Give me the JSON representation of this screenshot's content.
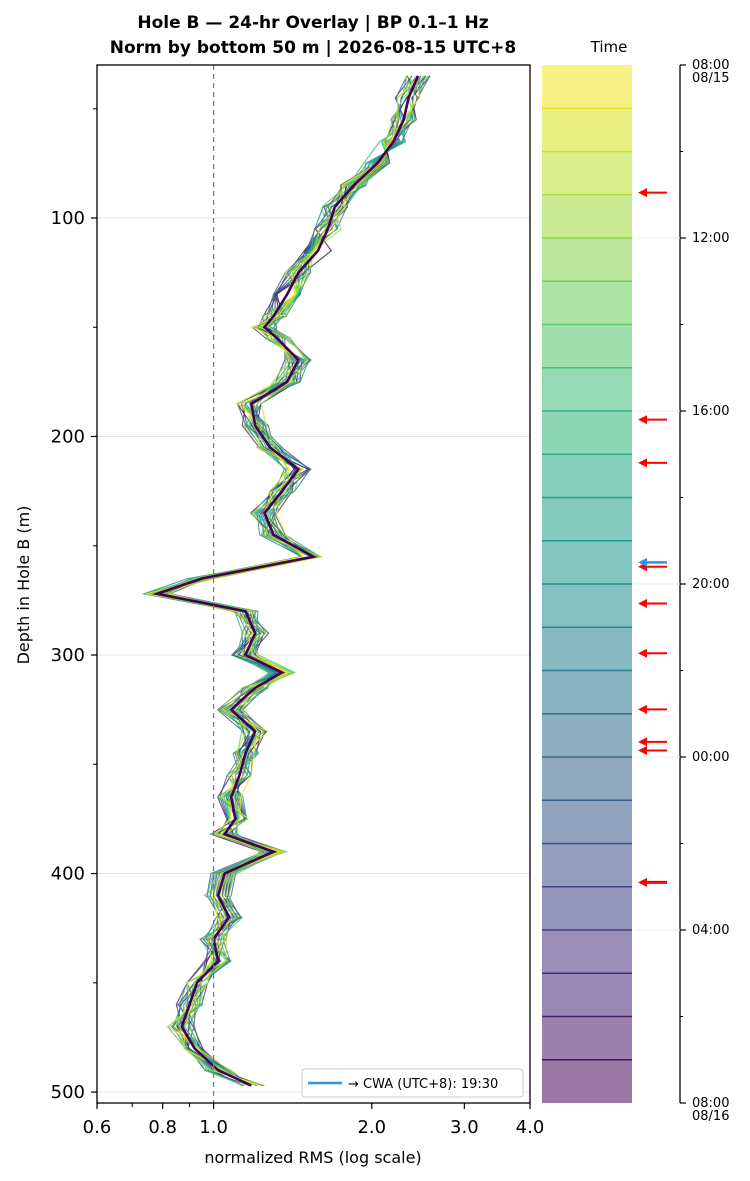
{
  "chart_data": {
    "type": "line",
    "title_line1": "Hole B — 24-hr Overlay  |  BP 0.1–1 Hz",
    "title_line2": "Norm by bottom 50 m  |  2026-08-15 UTC+8",
    "xlabel": "normalized RMS  (log scale)",
    "ylabel": "Depth in Hole B (m)",
    "x_scale": "log",
    "xlim": [
      0.6,
      4.0
    ],
    "ylim": [
      505,
      30
    ],
    "x_ticks": [
      {
        "value": 0.6,
        "label": "0.6"
      },
      {
        "value": 0.8,
        "label": "0.8"
      },
      {
        "value": 1.0,
        "label": "1.0"
      },
      {
        "value": 2.0,
        "label": "2.0"
      },
      {
        "value": 3.0,
        "label": "3.0"
      },
      {
        "value": 4.0,
        "label": "4.0"
      }
    ],
    "y_ticks": [
      {
        "value": 100,
        "label": "100"
      },
      {
        "value": 200,
        "label": "200"
      },
      {
        "value": 300,
        "label": "300"
      },
      {
        "value": 400,
        "label": "400"
      },
      {
        "value": 500,
        "label": "500"
      }
    ],
    "reference_line_x": 1.0,
    "grid": "horizontal",
    "legend": {
      "label": "→ CWA (UTC+8): 19:30",
      "color": "#3390e8",
      "position": "lower right"
    },
    "depths": [
      35,
      45,
      55,
      65,
      75,
      85,
      95,
      105,
      115,
      125,
      135,
      145,
      150,
      155,
      165,
      175,
      185,
      195,
      205,
      215,
      225,
      235,
      245,
      255,
      265,
      272,
      280,
      290,
      300,
      308,
      315,
      325,
      335,
      345,
      355,
      365,
      375,
      382,
      390,
      400,
      410,
      420,
      430,
      440,
      450,
      460,
      470,
      480,
      490,
      497
    ],
    "base_profile": [
      2.45,
      2.35,
      2.3,
      2.2,
      2.05,
      1.85,
      1.7,
      1.65,
      1.58,
      1.45,
      1.38,
      1.3,
      1.25,
      1.32,
      1.45,
      1.38,
      1.18,
      1.2,
      1.28,
      1.45,
      1.35,
      1.25,
      1.3,
      1.55,
      0.95,
      0.78,
      1.15,
      1.2,
      1.15,
      1.35,
      1.2,
      1.08,
      1.2,
      1.15,
      1.12,
      1.08,
      1.1,
      1.05,
      1.3,
      1.05,
      1.02,
      1.07,
      1.0,
      1.02,
      0.93,
      0.9,
      0.87,
      0.92,
      1.02,
      1.18
    ],
    "profile_count": 24,
    "colormap": {
      "title": "Time",
      "colors": [
        "#440154",
        "#481a6c",
        "#472f7d",
        "#414487",
        "#39568c",
        "#31688e",
        "#2a788e",
        "#23888e",
        "#1f988b",
        "#22a884",
        "#35b779",
        "#54c568",
        "#7ad151",
        "#a5db36",
        "#d2e21b",
        "#fde725"
      ],
      "alpha": 0.55,
      "band_count": 24,
      "ticks": [
        {
          "hour": 0,
          "label": "08:00",
          "sublabel": "08/15"
        },
        {
          "hour": 4,
          "label": "12:00",
          "sublabel": ""
        },
        {
          "hour": 8,
          "label": "16:00",
          "sublabel": ""
        },
        {
          "hour": 12,
          "label": "20:00",
          "sublabel": ""
        },
        {
          "hour": 16,
          "label": "00:00",
          "sublabel": ""
        },
        {
          "hour": 20,
          "label": "04:00",
          "sublabel": ""
        },
        {
          "hour": 24,
          "label": "08:00",
          "sublabel": "08/16"
        }
      ],
      "event_arrows_red": [
        2.95,
        8.2,
        9.2,
        11.6,
        12.45,
        13.6,
        14.9,
        15.65,
        15.85,
        18.9
      ],
      "event_arrow_blue": 11.5
    }
  }
}
